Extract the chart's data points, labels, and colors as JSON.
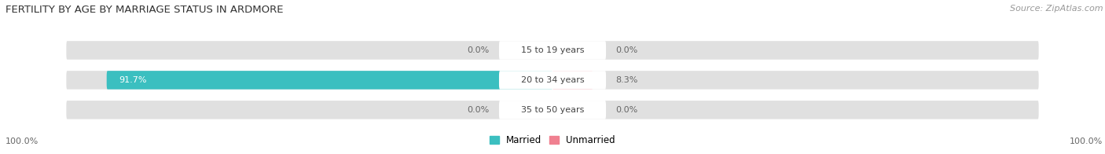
{
  "title": "FERTILITY BY AGE BY MARRIAGE STATUS IN ARDMORE",
  "source": "Source: ZipAtlas.com",
  "categories": [
    "15 to 19 years",
    "20 to 34 years",
    "35 to 50 years"
  ],
  "married_values": [
    0.0,
    91.7,
    0.0
  ],
  "unmarried_values": [
    0.0,
    8.3,
    0.0
  ],
  "married_color": "#3bbfc0",
  "unmarried_color": "#f08090",
  "bar_bg_color": "#e0e0e0",
  "bar_height": 0.62,
  "left_label": "100.0%",
  "right_label": "100.0%",
  "title_fontsize": 9.5,
  "source_fontsize": 8,
  "label_fontsize": 8,
  "tick_fontsize": 8,
  "legend_fontsize": 8.5,
  "bg_color": "#ffffff",
  "text_color": "#555555",
  "center_label_color": "#444444",
  "value_label_color_inside": "#ffffff",
  "value_label_color_outside": "#666666"
}
